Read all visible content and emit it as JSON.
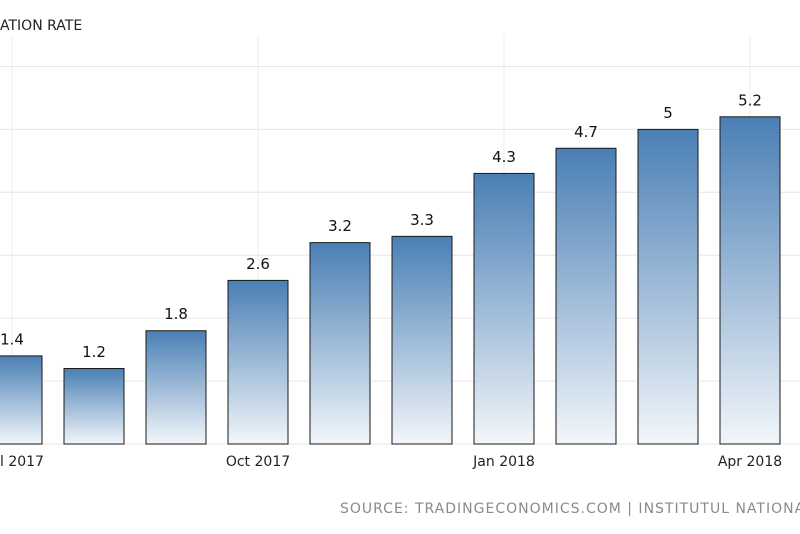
{
  "chart_data": {
    "type": "bar",
    "title": "ATION RATE",
    "categories": [
      "l 2017",
      null,
      null,
      "Oct 2017",
      null,
      null,
      "Jan 2018",
      null,
      null,
      "Apr 2018"
    ],
    "values": [
      1.4,
      1.2,
      1.8,
      2.6,
      3.2,
      3.3,
      4.3,
      4.7,
      5,
      5.2
    ],
    "color": "#4a7fb5",
    "ylim": [
      0,
      6.5
    ],
    "yticks": [
      0,
      1,
      2,
      3,
      4,
      5,
      6
    ],
    "grid": true,
    "source": "SOURCE: TRADINGECONOMICS.COM | INSTITUTUL NATIONAL"
  }
}
